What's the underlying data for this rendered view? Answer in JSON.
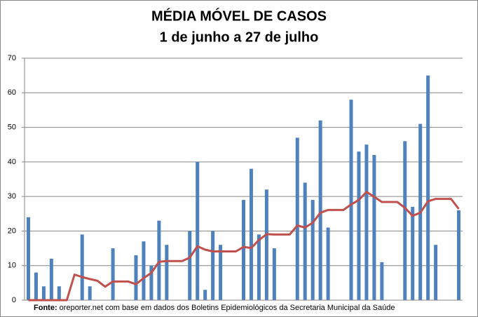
{
  "chart_data": {
    "type": "bar_line",
    "title": "MÉDIA MÓVEL DE  CASOS",
    "subtitle": "1 de junho a 27 de julho",
    "source_label": "Fonte:",
    "source": "oreporter.net com base em dados dos Boletins Epidemiológicos da Secretaria Municipal da Saúde",
    "categories": [
      null,
      null,
      null,
      null,
      null,
      null,
      null,
      null,
      null,
      null,
      null,
      null,
      null,
      null,
      null,
      null,
      null,
      null,
      null,
      null,
      null,
      null,
      null,
      null,
      null,
      null,
      null,
      null,
      null,
      null,
      null,
      null,
      null,
      null,
      null,
      null,
      null,
      null,
      null,
      null,
      null,
      null,
      null,
      null,
      null,
      null,
      null,
      null,
      null,
      null,
      null,
      null,
      null,
      null,
      null,
      null,
      null
    ],
    "series": [
      {
        "type": "bar",
        "color": "#4f81bd",
        "values": [
          24,
          8,
          4,
          12,
          4,
          0,
          0,
          19,
          4,
          0,
          0,
          15,
          0,
          0,
          13,
          17,
          10,
          23,
          16,
          0,
          0,
          20,
          40,
          3,
          20,
          16,
          0,
          0,
          29,
          38,
          19,
          32,
          15,
          0,
          0,
          47,
          34,
          29,
          52,
          21,
          0,
          0,
          58,
          43,
          45,
          42,
          11,
          0,
          0,
          46,
          27,
          51,
          65,
          16,
          0,
          0,
          26
        ]
      },
      {
        "type": "line",
        "color": "#c0504d",
        "values": [
          0,
          0,
          0,
          0,
          0,
          0,
          7.4,
          6.7,
          6.1,
          5.6,
          3.9,
          5.4,
          5.4,
          5.4,
          4.6,
          6.4,
          7.9,
          11.1,
          11.3,
          11.3,
          11.3,
          12.3,
          15.6,
          14.6,
          14.1,
          14.1,
          14.1,
          14.1,
          15.4,
          15.1,
          17.4,
          19.1,
          19,
          19,
          19,
          21.6,
          21,
          22.4,
          25.3,
          26.1,
          26.1,
          26.1,
          27.7,
          29,
          31.3,
          29.9,
          28.4,
          28.4,
          28.4,
          26.7,
          24.4,
          25.3,
          28.6,
          29.3,
          29.3,
          29.3,
          26.4
        ]
      }
    ],
    "ylim": [
      0,
      70
    ],
    "yticks": [
      0,
      10,
      20,
      30,
      40,
      50,
      60,
      70
    ],
    "grid": true
  }
}
